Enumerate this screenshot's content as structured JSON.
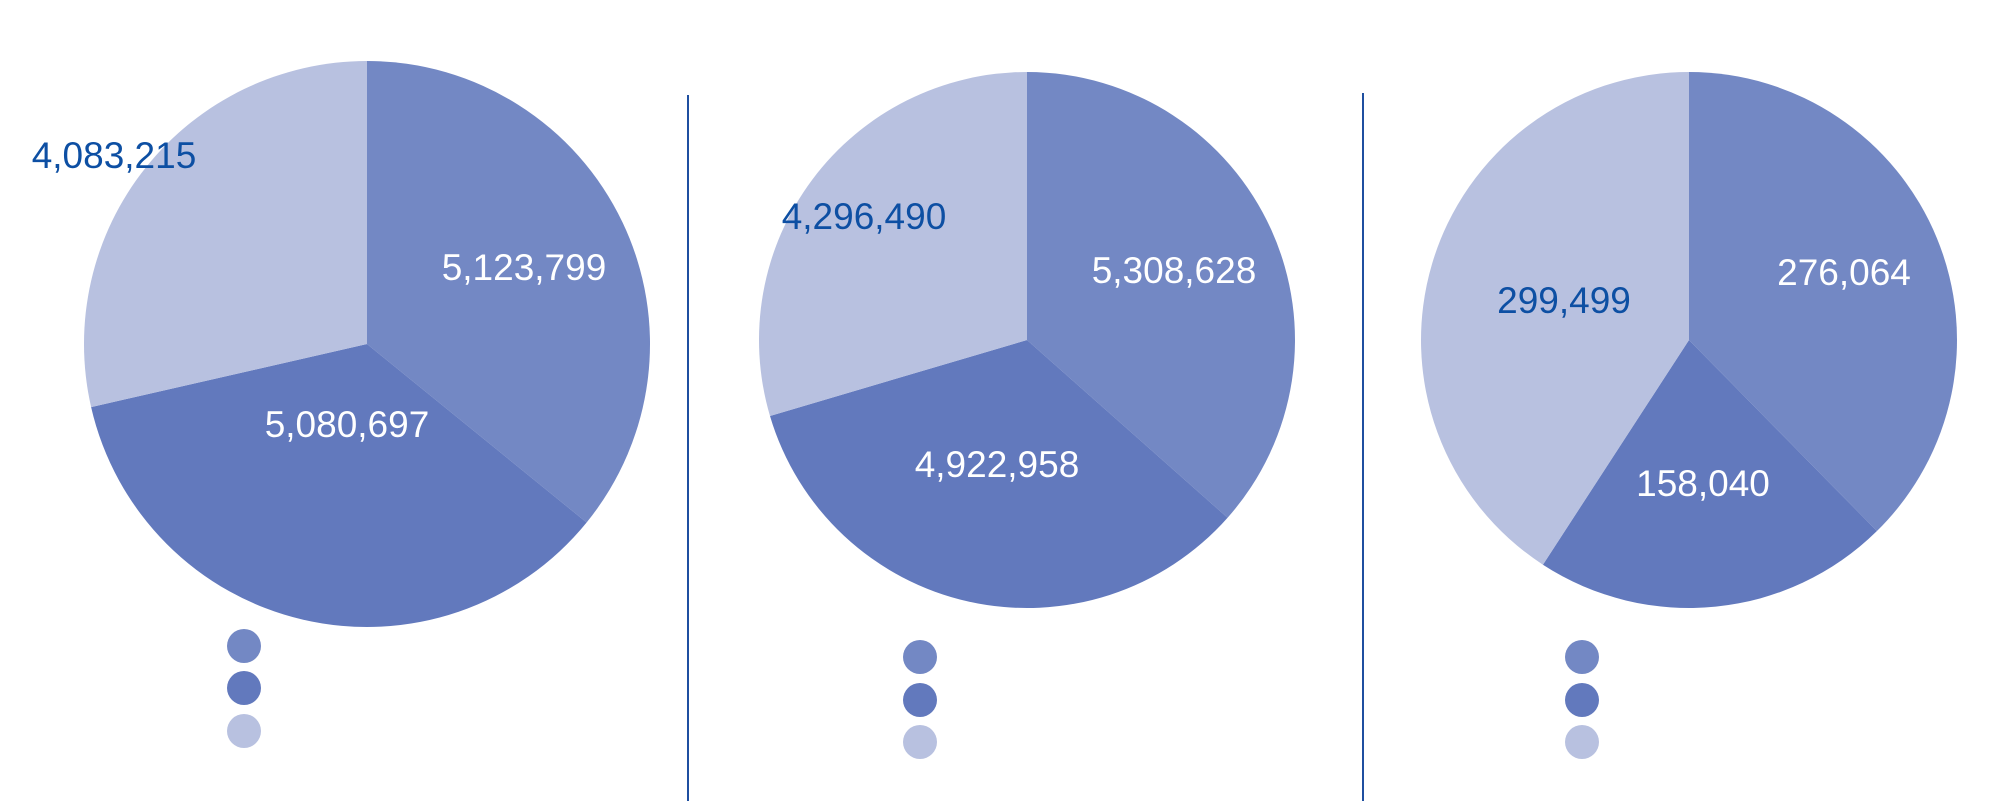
{
  "colors": {
    "slice_1": "#7388c4",
    "slice_2": "#6279bd",
    "slice_3": "#b8c1e0",
    "label_on_dark": "#ffffff",
    "label_on_light": "#0d4fa3",
    "divider": "#1f4fa0"
  },
  "chart_data": [
    {
      "type": "pie",
      "start": "12 o'clock",
      "direction": "clockwise",
      "slices": [
        {
          "value": 5123799,
          "label": "5,123,799"
        },
        {
          "value": 5080697,
          "label": "5,080,697"
        },
        {
          "value": 4083215,
          "label": "4,083,215"
        }
      ],
      "legend": "bottom, markers only"
    },
    {
      "type": "pie",
      "start": "12 o'clock",
      "direction": "clockwise",
      "slices": [
        {
          "value": 5308628,
          "label": "5,308,628"
        },
        {
          "value": 4922958,
          "label": "4,922,958"
        },
        {
          "value": 4296490,
          "label": "4,296,490"
        }
      ],
      "legend": "bottom, markers only"
    },
    {
      "type": "pie",
      "start": "12 o'clock",
      "direction": "clockwise",
      "slices": [
        {
          "value": 276064,
          "label": "276,064"
        },
        {
          "value": 158040,
          "label": "158,040"
        },
        {
          "value": 299499,
          "label": "299,499"
        }
      ],
      "legend": "bottom, markers only"
    }
  ]
}
